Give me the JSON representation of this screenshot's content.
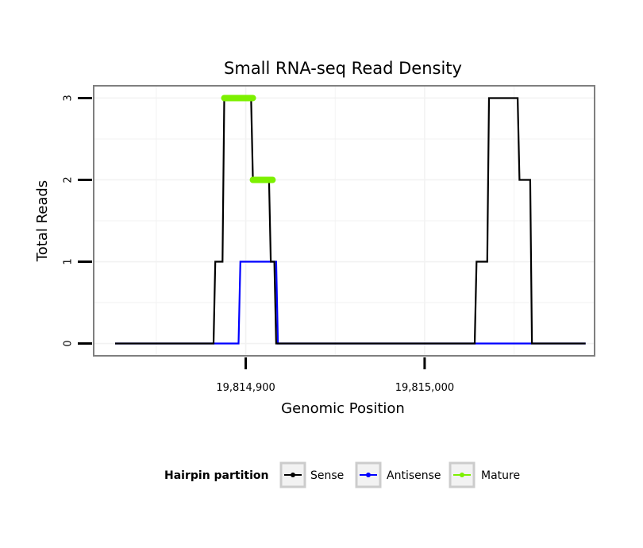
{
  "chart_data": {
    "type": "line",
    "title": "Small RNA-seq Read Density",
    "xlabel": "Genomic Position",
    "ylabel": "Total Reads",
    "xlim": [
      19814815,
      19815095
    ],
    "ylim": [
      -0.15,
      3.15
    ],
    "x_ticks": [
      19814900,
      19815000
    ],
    "x_tick_labels": [
      "19,814,900",
      "19,815,000"
    ],
    "y_ticks": [
      0,
      1,
      2,
      3
    ],
    "y_tick_labels": [
      "0",
      "1",
      "2",
      "3"
    ],
    "grid": true,
    "legend": {
      "title": "Hairpin partition",
      "position": "bottom",
      "entries": [
        "Sense",
        "Antisense",
        "Mature"
      ]
    },
    "series": [
      {
        "name": "Sense",
        "color": "#000000",
        "x": [
          19814827,
          19814882,
          19814883,
          19814887,
          19814888,
          19814903,
          19814904,
          19814913,
          19814914,
          19814916,
          19814917,
          19815028,
          19815029,
          19815035,
          19815036,
          19815052,
          19815053,
          19815059,
          19815060,
          19815090
        ],
        "y": [
          0,
          0,
          1,
          1,
          3,
          3,
          2,
          2,
          1,
          1,
          0,
          0,
          1,
          1,
          3,
          3,
          2,
          2,
          0,
          0
        ]
      },
      {
        "name": "Antisense",
        "color": "#0000ff",
        "x": [
          19814827,
          19814896,
          19814897,
          19814917,
          19814918,
          19815090
        ],
        "y": [
          0,
          0,
          1,
          1,
          0,
          0
        ]
      },
      {
        "name": "Mature",
        "color": "#7cf000",
        "segments": [
          {
            "x": [
              19814888,
              19814904
            ],
            "y": 3
          },
          {
            "x": [
              19814904,
              19814915
            ],
            "y": 2
          }
        ]
      }
    ]
  }
}
